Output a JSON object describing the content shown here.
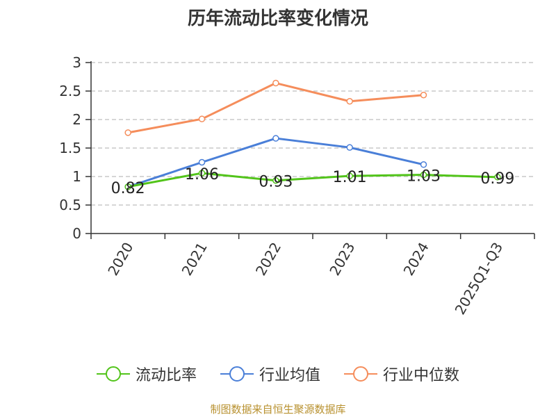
{
  "chart_data": {
    "type": "line",
    "title": "历年流动比率变化情况",
    "categories": [
      "2020",
      "2021",
      "2022",
      "2023",
      "2024",
      "2025Q1-Q3"
    ],
    "ylim": [
      0,
      3
    ],
    "yticks": [
      "0",
      "0.5",
      "1",
      "1.5",
      "2",
      "2.5",
      "3"
    ],
    "grid": true,
    "legend_position": "bottom",
    "series": [
      {
        "name": "流动比率",
        "color": "#52c41a",
        "values": [
          0.82,
          1.06,
          0.93,
          1.01,
          1.03,
          0.99
        ],
        "labels": [
          "0.82",
          "1.06",
          "0.93",
          "1.01",
          "1.03",
          "0.99"
        ]
      },
      {
        "name": "行业均值",
        "color": "#4a7fd8",
        "values": [
          0.82,
          1.25,
          1.67,
          1.51,
          1.21,
          null
        ]
      },
      {
        "name": "行业中位数",
        "color": "#f58d5b",
        "values": [
          1.77,
          2.01,
          2.64,
          2.32,
          2.43,
          null
        ]
      }
    ]
  },
  "source": "制图数据来自恒生聚源数据库"
}
